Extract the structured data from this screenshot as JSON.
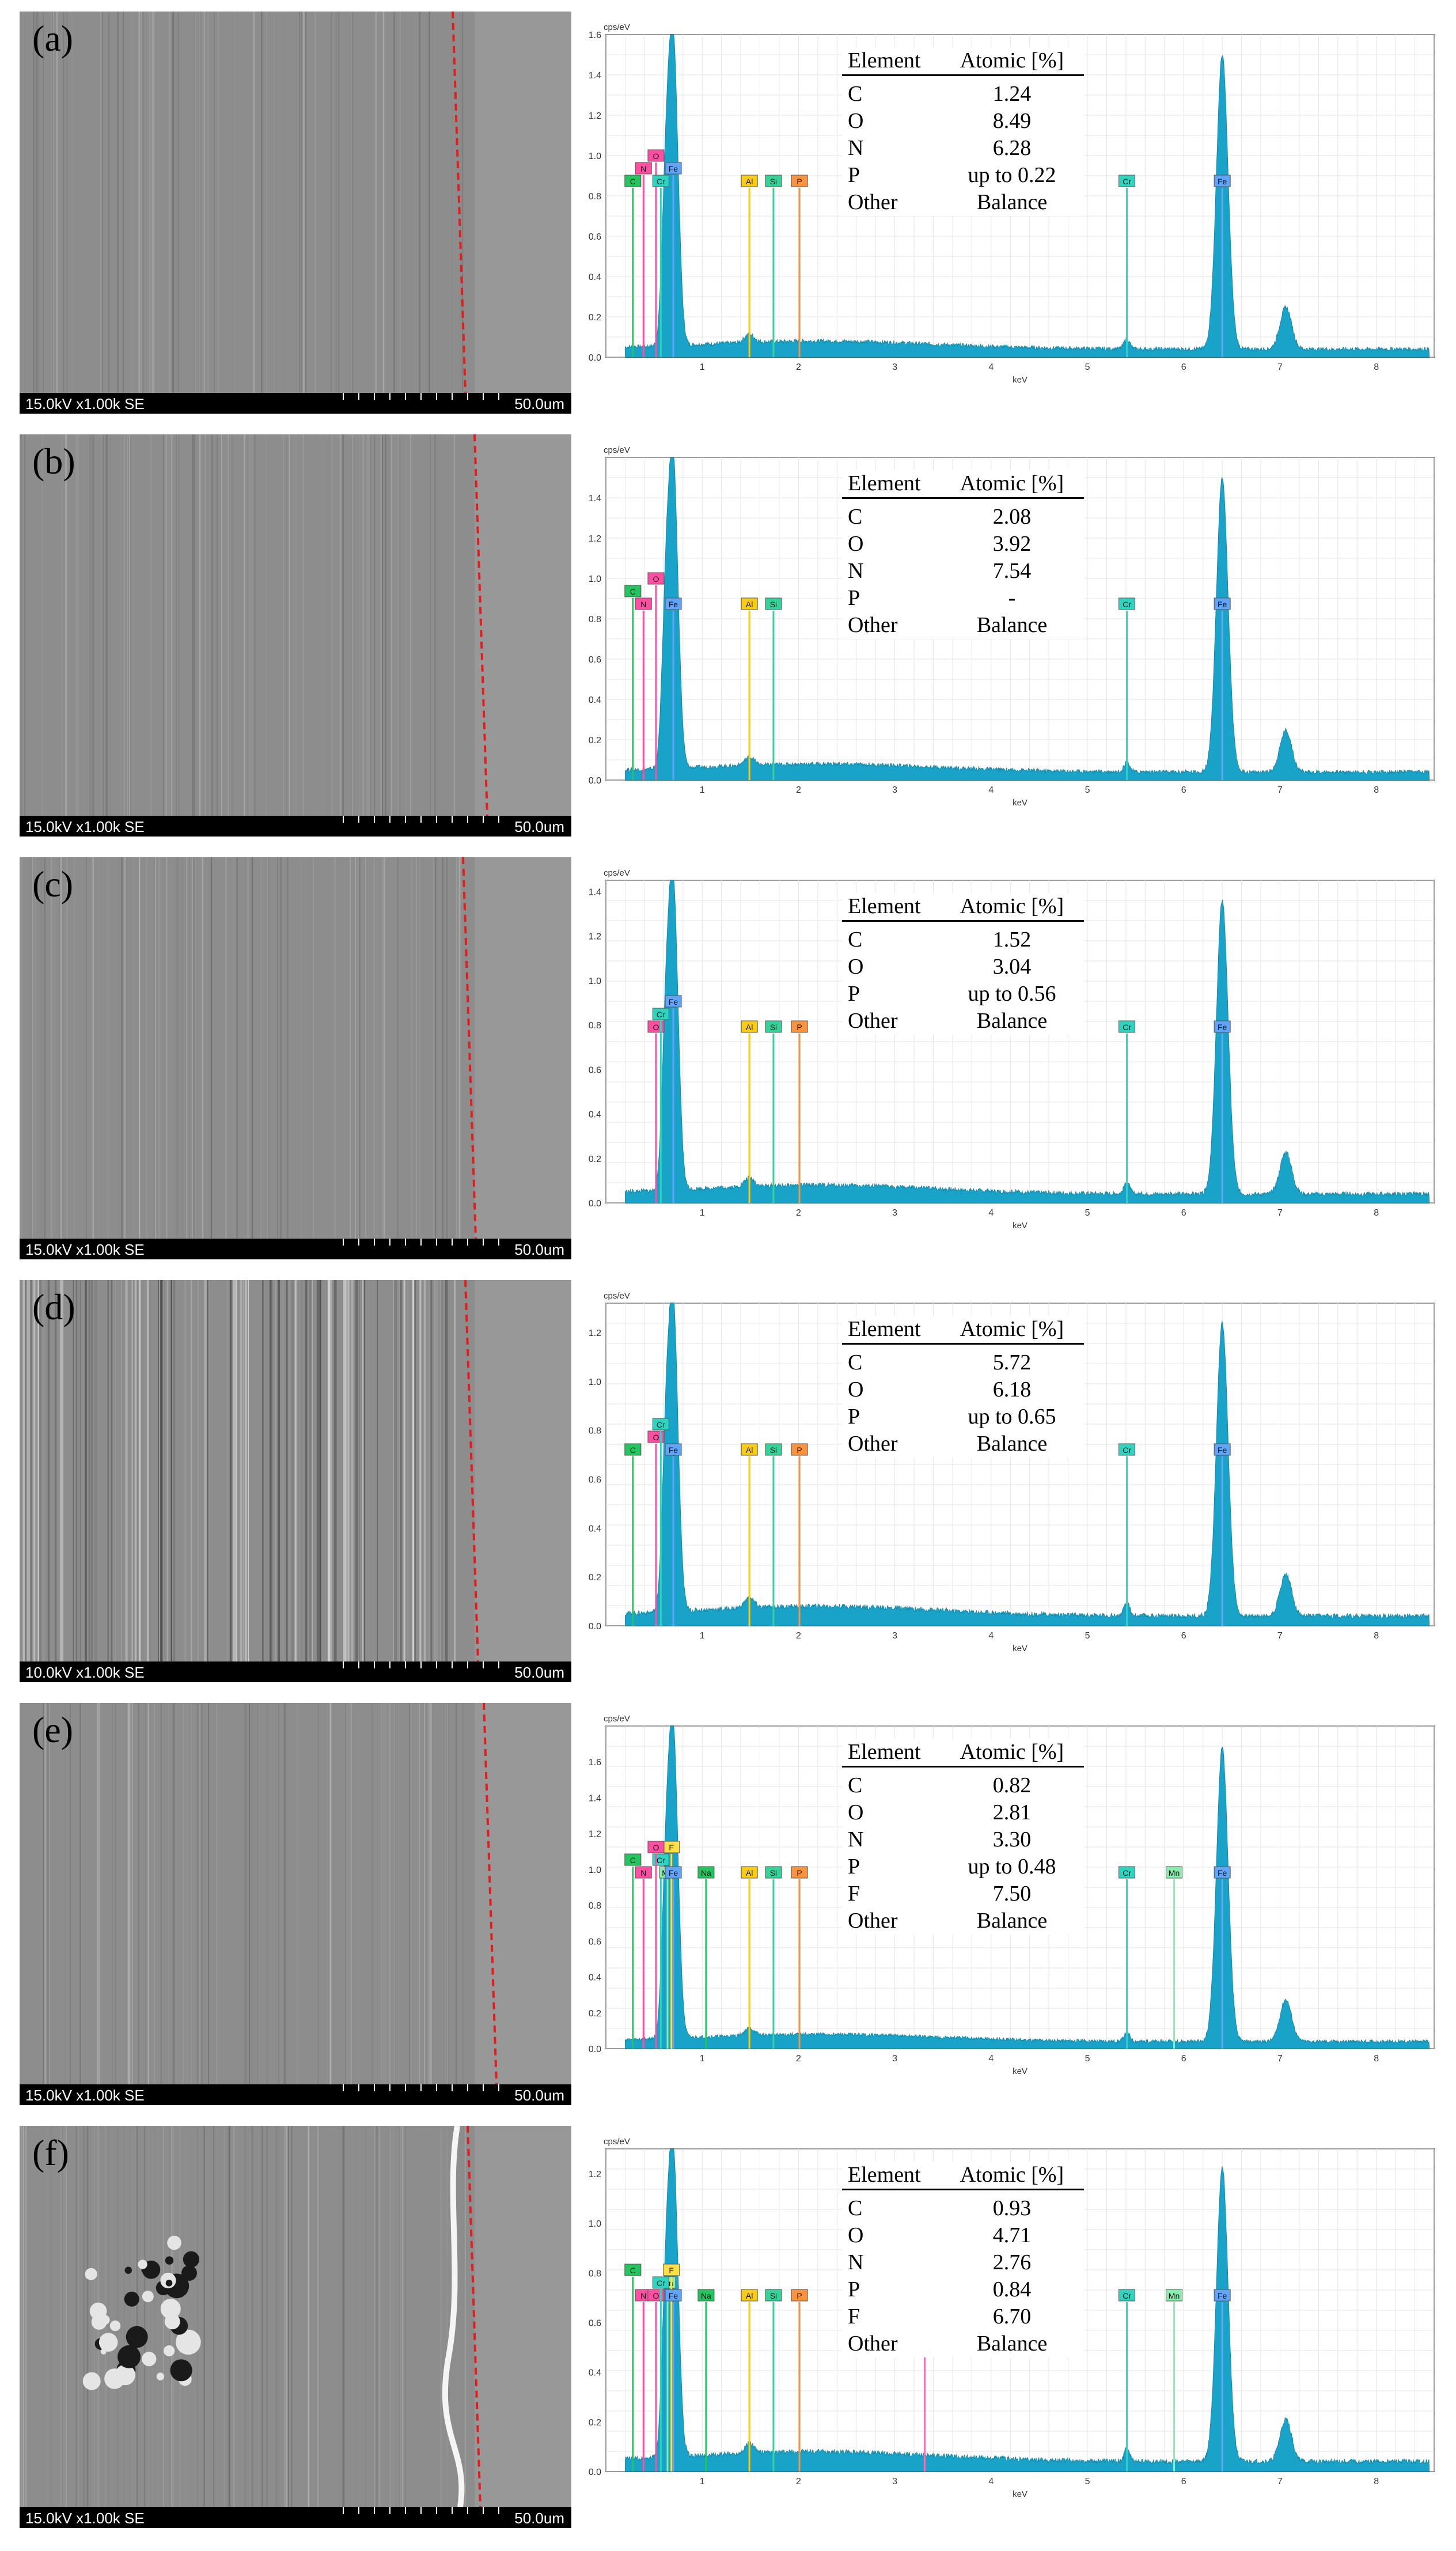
{
  "figure": {
    "panels": [
      {
        "label": "(a)",
        "sem": {
          "left_text": "15.0kV x1.00k SE",
          "scale_text": "50.0um"
        },
        "eds": {
          "y_unit": "cps/eV",
          "x_label": "keV",
          "y_ticks": [
            "0.0",
            "0.2",
            "0.4",
            "0.6",
            "0.8",
            "1.0",
            "1.2",
            "1.4",
            "1.6"
          ],
          "y_max": 1.6,
          "x_ticks": [
            "1",
            "2",
            "3",
            "4",
            "5",
            "6",
            "7",
            "8"
          ],
          "peak_labels": [
            "C",
            "N",
            "O",
            "Cr",
            "Fe",
            "Al",
            "Si",
            "P",
            "Cr",
            "Fe"
          ],
          "table_header": {
            "element": "Element",
            "atomic": "Atomic [%]"
          },
          "table_rows": [
            {
              "element": "C",
              "value": "1.24"
            },
            {
              "element": "O",
              "value": "8.49"
            },
            {
              "element": "N",
              "value": "6.28"
            },
            {
              "element": "P",
              "value": "up to 0.22"
            },
            {
              "element": "Other",
              "value": "Balance"
            }
          ]
        }
      },
      {
        "label": "(b)",
        "sem": {
          "left_text": "15.0kV x1.00k SE",
          "scale_text": "50.0um"
        },
        "eds": {
          "y_unit": "cps/eV",
          "x_label": "keV",
          "y_ticks": [
            "0.0",
            "0.2",
            "0.4",
            "0.6",
            "0.8",
            "1.0",
            "1.2",
            "1.4"
          ],
          "y_max": 1.6,
          "x_ticks": [
            "1",
            "2",
            "3",
            "4",
            "5",
            "6",
            "7",
            "8"
          ],
          "peak_labels": [
            "N",
            "C",
            "O",
            "Fe",
            "Al",
            "Si",
            "Cr",
            "Fe"
          ],
          "table_header": {
            "element": "Element",
            "atomic": "Atomic [%]"
          },
          "table_rows": [
            {
              "element": "C",
              "value": "2.08"
            },
            {
              "element": "O",
              "value": "3.92"
            },
            {
              "element": "N",
              "value": "7.54"
            },
            {
              "element": "P",
              "value": "-"
            },
            {
              "element": "Other",
              "value": "Balance"
            }
          ]
        }
      },
      {
        "label": "(c)",
        "sem": {
          "left_text": "15.0kV x1.00k SE",
          "scale_text": "50.0um"
        },
        "eds": {
          "y_unit": "cps/eV",
          "x_label": "keV",
          "y_ticks": [
            "0.0",
            "0.2",
            "0.4",
            "0.6",
            "0.8",
            "1.0",
            "1.2",
            "1.4"
          ],
          "y_max": 1.45,
          "x_ticks": [
            "1",
            "2",
            "3",
            "4",
            "5",
            "6",
            "7",
            "8"
          ],
          "peak_labels": [
            "O",
            "Cr",
            "Fe",
            "Al",
            "Si",
            "P",
            "Cr",
            "Fe"
          ],
          "table_header": {
            "element": "Element",
            "atomic": "Atomic [%]"
          },
          "table_rows": [
            {
              "element": "C",
              "value": "1.52"
            },
            {
              "element": "O",
              "value": "3.04"
            },
            {
              "element": "P",
              "value": "up to 0.56"
            },
            {
              "element": "Other",
              "value": "Balance"
            }
          ]
        }
      },
      {
        "label": "(d)",
        "sem": {
          "left_text": "10.0kV x1.00k SE",
          "scale_text": "50.0um"
        },
        "eds": {
          "y_unit": "cps/eV",
          "x_label": "keV",
          "y_ticks": [
            "0.0",
            "0.2",
            "0.4",
            "0.6",
            "0.8",
            "1.0",
            "1.2"
          ],
          "y_max": 1.32,
          "x_ticks": [
            "1",
            "2",
            "3",
            "4",
            "5",
            "6",
            "7",
            "8"
          ],
          "peak_labels": [
            "C",
            "O",
            "Cr",
            "Fe",
            "Al",
            "Si",
            "P",
            "Cr",
            "Fe"
          ],
          "table_header": {
            "element": "Element",
            "atomic": "Atomic [%]"
          },
          "table_rows": [
            {
              "element": "C",
              "value": "5.72"
            },
            {
              "element": "O",
              "value": "6.18"
            },
            {
              "element": "P",
              "value": "up to 0.65"
            },
            {
              "element": "Other",
              "value": "Balance"
            }
          ]
        }
      },
      {
        "label": "(e)",
        "sem": {
          "left_text": "15.0kV x1.00k SE",
          "scale_text": "50.0um"
        },
        "eds": {
          "y_unit": "cps/eV",
          "x_label": "keV",
          "y_ticks": [
            "0.0",
            "0.2",
            "0.4",
            "0.6",
            "0.8",
            "1.0",
            "1.2",
            "1.4",
            "1.6"
          ],
          "y_max": 1.8,
          "x_ticks": [
            "1",
            "2",
            "3",
            "4",
            "5",
            "6",
            "7",
            "8"
          ],
          "peak_labels": [
            "N",
            "Cr",
            "F",
            "Mn",
            "C",
            "O",
            "Fe",
            "Na",
            "Al",
            "Si",
            "P",
            "Cr",
            "Mn",
            "Fe"
          ],
          "table_header": {
            "element": "Element",
            "atomic": "Atomic [%]"
          },
          "table_rows": [
            {
              "element": "C",
              "value": "0.82"
            },
            {
              "element": "O",
              "value": "2.81"
            },
            {
              "element": "N",
              "value": "3.30"
            },
            {
              "element": "P",
              "value": "up to 0.48"
            },
            {
              "element": "F",
              "value": "7.50"
            },
            {
              "element": "Other",
              "value": "Balance"
            }
          ]
        }
      },
      {
        "label": "(f)",
        "sem": {
          "left_text": "15.0kV x1.00k SE",
          "scale_text": "50.0um"
        },
        "eds": {
          "y_unit": "cps/eV",
          "x_label": "keV",
          "y_ticks": [
            "0.0",
            "0.2",
            "0.4",
            "0.6",
            "0.8",
            "1.0",
            "1.2"
          ],
          "y_max": 1.3,
          "x_ticks": [
            "1",
            "2",
            "3",
            "4",
            "5",
            "6",
            "7",
            "8"
          ],
          "peak_labels": [
            "N",
            "Mn",
            "C",
            "O",
            "Cr",
            "F",
            "Fe",
            "Na",
            "Al",
            "Si",
            "P",
            "K",
            "Cr",
            "Mn",
            "Fe"
          ],
          "table_header": {
            "element": "Element",
            "atomic": "Atomic [%]"
          },
          "table_rows": [
            {
              "element": "C",
              "value": "0.93"
            },
            {
              "element": "O",
              "value": "4.71"
            },
            {
              "element": "N",
              "value": "2.76"
            },
            {
              "element": "P",
              "value": "0.84"
            },
            {
              "element": "F",
              "value": "6.70"
            },
            {
              "element": "Other",
              "value": "Balance"
            }
          ]
        }
      }
    ]
  }
}
